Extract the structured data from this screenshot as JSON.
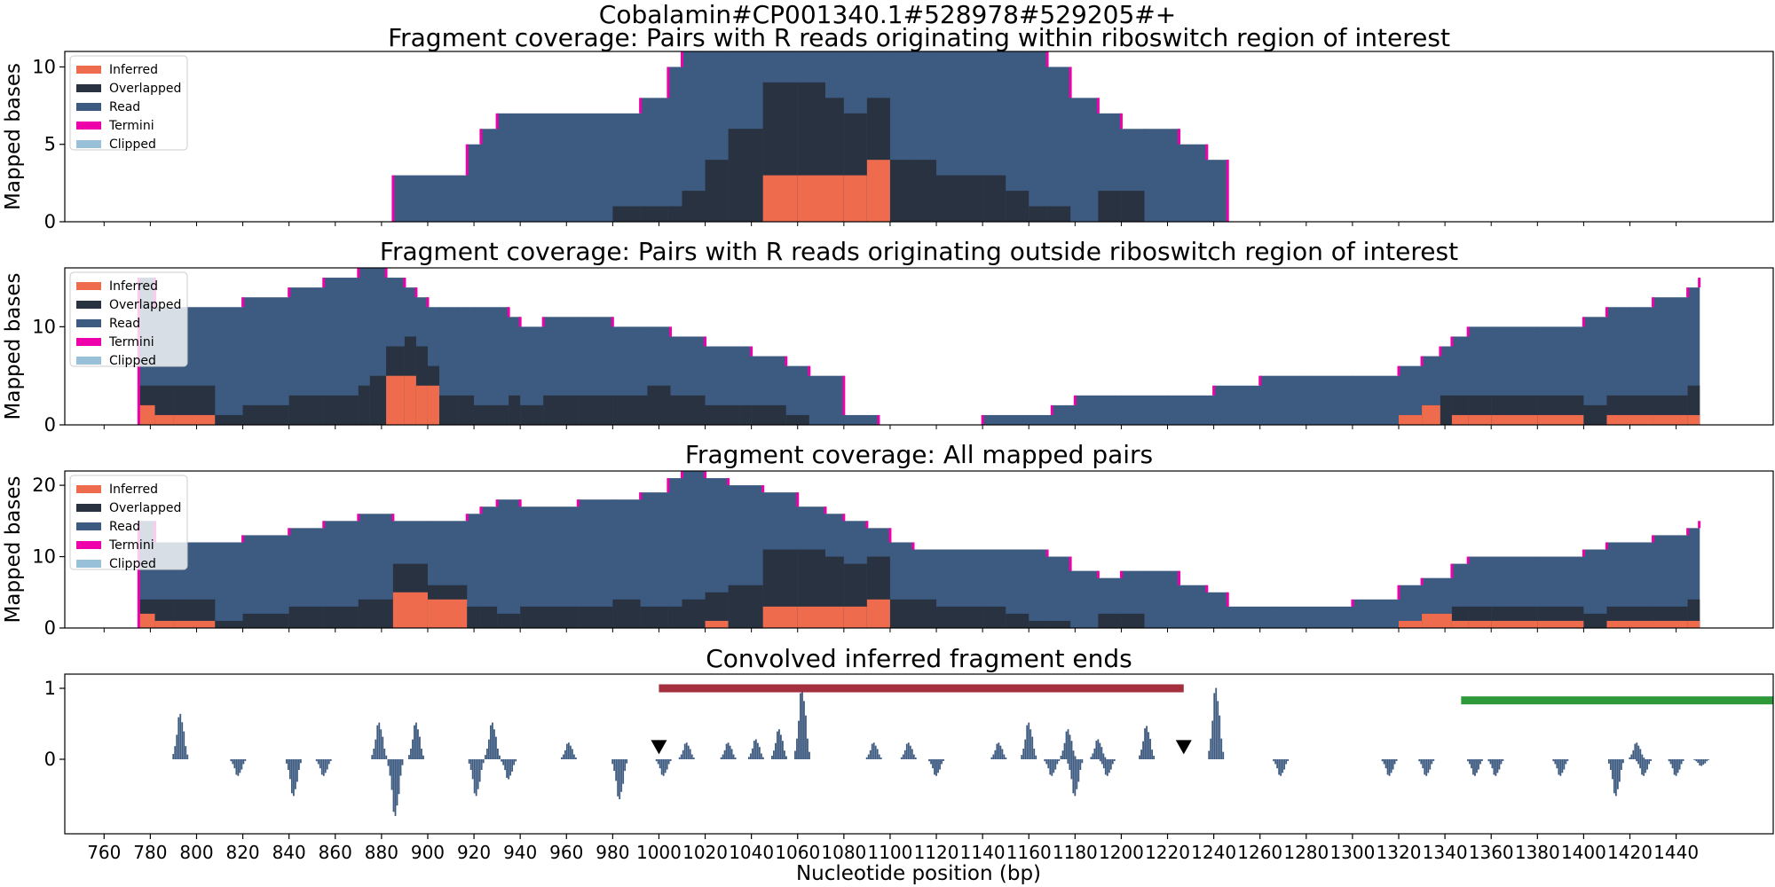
{
  "figure": {
    "suptitle": "Cobalamin#CP001340.1#528978#529205#+",
    "xlabel": "Nucleotide position (bp)"
  },
  "colors": {
    "Inferred": "#ee6c4d",
    "Overlapped": "#293241",
    "Read": "#3d5a80",
    "Termini": "#ee00aa",
    "Clipped": "#98c1d9",
    "ends_bars": "#3d5a80",
    "red_bar": "#a4303f",
    "green_bar": "#2e9939",
    "marker": "#000000"
  },
  "legend": [
    "Inferred",
    "Overlapped",
    "Read",
    "Termini",
    "Clipped"
  ],
  "chart_data": [
    {
      "type": "area",
      "title": "Fragment coverage: Pairs with R reads originating within riboswitch region of interest",
      "ylabel": "Mapped bases",
      "xlim": [
        743,
        1482
      ],
      "ylim": [
        0,
        11
      ],
      "yticks": [
        0,
        5,
        10
      ],
      "legend_position": "upper left",
      "steps": {
        "x": [
          885,
          917,
          923,
          930,
          940,
          965,
          980,
          992,
          1004,
          1010,
          1020,
          1030,
          1045,
          1060,
          1072,
          1080,
          1090,
          1100,
          1110,
          1120,
          1140,
          1150,
          1160,
          1168,
          1178,
          1190,
          1200,
          1210,
          1225,
          1237,
          1246
        ],
        "Read": [
          3,
          5,
          6,
          7,
          7,
          7,
          7,
          8,
          10,
          11,
          11,
          11,
          11,
          11,
          11,
          11,
          11,
          11,
          11,
          11,
          11,
          11,
          11,
          10,
          8,
          7,
          6,
          6,
          5,
          4,
          0
        ],
        "Overlapped": [
          0,
          0,
          0,
          0,
          0,
          0,
          1,
          1,
          1,
          2,
          4,
          6,
          9,
          9,
          8,
          7,
          8,
          4,
          4,
          3,
          3,
          2,
          1,
          1,
          0,
          2,
          2,
          0,
          0,
          0,
          0
        ],
        "Inferred": [
          0,
          0,
          0,
          0,
          0,
          0,
          0,
          0,
          0,
          0,
          0,
          0,
          3,
          3,
          3,
          3,
          4,
          0,
          0,
          0,
          0,
          0,
          0,
          0,
          0,
          0,
          0,
          0,
          0,
          0,
          0
        ]
      }
    },
    {
      "type": "area",
      "title": "Fragment coverage: Pairs with R reads originating outside riboswitch region of interest",
      "ylabel": "Mapped bases",
      "xlim": [
        743,
        1482
      ],
      "ylim": [
        0,
        16
      ],
      "yticks": [
        0,
        10
      ],
      "legend_position": "upper left",
      "steps": {
        "x": [
          775,
          782,
          790,
          800,
          808,
          820,
          840,
          855,
          870,
          875,
          882,
          890,
          895,
          900,
          905,
          913,
          920,
          935,
          940,
          950,
          965,
          980,
          995,
          1005,
          1020,
          1035,
          1040,
          1055,
          1065,
          1080,
          1095,
          1140,
          1170,
          1180,
          1200,
          1220,
          1240,
          1260,
          1280,
          1300,
          1320,
          1330,
          1338,
          1343,
          1350,
          1360,
          1380,
          1400,
          1410,
          1420,
          1430,
          1445,
          1450
        ],
        "Read": [
          15,
          12,
          12,
          12,
          12,
          13,
          14,
          15,
          16,
          16,
          15,
          14,
          13,
          12,
          12,
          12,
          12,
          11,
          10,
          11,
          11,
          10,
          10,
          9,
          8,
          8,
          7,
          6,
          5,
          1,
          0,
          1,
          2,
          3,
          3,
          3,
          4,
          5,
          5,
          5,
          6,
          7,
          8,
          9,
          10,
          10,
          10,
          11,
          12,
          12,
          13,
          14,
          15
        ],
        "Overlapped": [
          4,
          4,
          4,
          4,
          1,
          2,
          3,
          3,
          4,
          5,
          8,
          9,
          8,
          6,
          3,
          3,
          2,
          3,
          2,
          3,
          3,
          3,
          4,
          3,
          2,
          2,
          2,
          1,
          0,
          0,
          0,
          0,
          0,
          0,
          0,
          0,
          0,
          0,
          0,
          0,
          1,
          2,
          3,
          3,
          3,
          3,
          3,
          2,
          3,
          3,
          3,
          4,
          7
        ],
        "Inferred": [
          2,
          1,
          1,
          1,
          0,
          0,
          0,
          0,
          0,
          0,
          5,
          5,
          4,
          4,
          0,
          0,
          0,
          0,
          0,
          0,
          0,
          0,
          0,
          0,
          0,
          0,
          0,
          0,
          0,
          0,
          0,
          0,
          0,
          0,
          0,
          0,
          0,
          0,
          0,
          0,
          1,
          2,
          0,
          1,
          1,
          1,
          1,
          0,
          1,
          1,
          1,
          1,
          0
        ]
      }
    },
    {
      "type": "area",
      "title": "Fragment coverage: All mapped pairs",
      "ylabel": "Mapped bases",
      "xlim": [
        743,
        1482
      ],
      "ylim": [
        0,
        22
      ],
      "yticks": [
        0,
        10,
        20
      ],
      "legend_position": "upper left",
      "steps": {
        "x": [
          775,
          782,
          790,
          800,
          808,
          820,
          840,
          855,
          870,
          885,
          900,
          917,
          923,
          930,
          940,
          965,
          980,
          992,
          1004,
          1010,
          1020,
          1030,
          1045,
          1060,
          1072,
          1080,
          1090,
          1100,
          1110,
          1120,
          1140,
          1150,
          1160,
          1168,
          1178,
          1190,
          1200,
          1210,
          1225,
          1237,
          1246,
          1265,
          1300,
          1320,
          1330,
          1343,
          1350,
          1360,
          1380,
          1400,
          1410,
          1420,
          1430,
          1445,
          1450
        ],
        "Read": [
          15,
          12,
          12,
          12,
          12,
          13,
          14,
          15,
          16,
          15,
          15,
          16,
          17,
          18,
          17,
          18,
          18,
          19,
          21,
          22,
          21,
          20,
          19,
          17,
          16,
          15,
          14,
          12,
          11,
          11,
          11,
          11,
          11,
          10,
          8,
          7,
          8,
          8,
          6,
          5,
          3,
          3,
          4,
          6,
          7,
          9,
          10,
          10,
          10,
          11,
          12,
          12,
          13,
          14,
          15
        ],
        "Overlapped": [
          4,
          4,
          4,
          4,
          1,
          2,
          3,
          3,
          4,
          9,
          6,
          3,
          3,
          2,
          3,
          3,
          4,
          3,
          3,
          4,
          5,
          6,
          11,
          11,
          10,
          9,
          10,
          4,
          4,
          3,
          3,
          2,
          1,
          1,
          0,
          2,
          2,
          0,
          0,
          0,
          0,
          0,
          0,
          1,
          2,
          3,
          3,
          3,
          3,
          2,
          3,
          3,
          3,
          4,
          7
        ],
        "Inferred": [
          2,
          1,
          1,
          1,
          0,
          0,
          0,
          0,
          0,
          5,
          4,
          0,
          0,
          0,
          0,
          0,
          0,
          0,
          0,
          0,
          1,
          0,
          3,
          3,
          3,
          3,
          4,
          0,
          0,
          0,
          0,
          0,
          0,
          0,
          0,
          0,
          0,
          0,
          0,
          0,
          0,
          0,
          0,
          1,
          2,
          1,
          1,
          1,
          1,
          0,
          1,
          1,
          1,
          1,
          0
        ]
      }
    },
    {
      "type": "bar",
      "title": "Convolved inferred fragment ends",
      "xlabel": "Nucleotide position (bp)",
      "xlim": [
        743,
        1482
      ],
      "ylim": [
        -1.05,
        1.2
      ],
      "yticks": [
        0,
        1
      ],
      "xticks": [
        760,
        780,
        800,
        820,
        840,
        860,
        880,
        900,
        920,
        940,
        960,
        980,
        1000,
        1020,
        1040,
        1060,
        1080,
        1100,
        1120,
        1140,
        1160,
        1180,
        1200,
        1220,
        1240,
        1260,
        1280,
        1300,
        1320,
        1340,
        1360,
        1380,
        1400,
        1420,
        1440
      ],
      "peaks": [
        {
          "x": 793,
          "h": 0.68
        },
        {
          "x": 818,
          "h": -0.25
        },
        {
          "x": 842,
          "h": -0.55
        },
        {
          "x": 855,
          "h": -0.25
        },
        {
          "x": 879,
          "h": 0.55
        },
        {
          "x": 886,
          "h": -0.85
        },
        {
          "x": 895,
          "h": 0.55
        },
        {
          "x": 921,
          "h": -0.55
        },
        {
          "x": 928,
          "h": 0.55
        },
        {
          "x": 935,
          "h": -0.3
        },
        {
          "x": 961,
          "h": 0.25
        },
        {
          "x": 983,
          "h": -0.6
        },
        {
          "x": 1002,
          "h": -0.25
        },
        {
          "x": 1012,
          "h": 0.25
        },
        {
          "x": 1030,
          "h": 0.25
        },
        {
          "x": 1042,
          "h": 0.3
        },
        {
          "x": 1052,
          "h": 0.45
        },
        {
          "x": 1062,
          "h": 1.07
        },
        {
          "x": 1093,
          "h": 0.25
        },
        {
          "x": 1108,
          "h": 0.25
        },
        {
          "x": 1120,
          "h": -0.25
        },
        {
          "x": 1147,
          "h": 0.25
        },
        {
          "x": 1160,
          "h": 0.55
        },
        {
          "x": 1170,
          "h": -0.25
        },
        {
          "x": 1177,
          "h": 0.45
        },
        {
          "x": 1180,
          "h": -0.55
        },
        {
          "x": 1190,
          "h": 0.3
        },
        {
          "x": 1194,
          "h": -0.25
        },
        {
          "x": 1211,
          "h": 0.5
        },
        {
          "x": 1241,
          "h": 1.07
        },
        {
          "x": 1269,
          "h": -0.25
        },
        {
          "x": 1316,
          "h": -0.25
        },
        {
          "x": 1332,
          "h": -0.25
        },
        {
          "x": 1353,
          "h": -0.25
        },
        {
          "x": 1362,
          "h": -0.25
        },
        {
          "x": 1390,
          "h": -0.25
        },
        {
          "x": 1414,
          "h": -0.55
        },
        {
          "x": 1423,
          "h": 0.25
        },
        {
          "x": 1426,
          "h": -0.25
        },
        {
          "x": 1440,
          "h": -0.25
        },
        {
          "x": 1451,
          "h": -0.1
        }
      ],
      "red_bar": {
        "x0": 1000,
        "x1": 1227,
        "y": 1.0
      },
      "green_bar": {
        "x0": 1347,
        "x1": 1482,
        "y": 0.83
      },
      "markers": [
        {
          "x": 1000,
          "y": 0.07
        },
        {
          "x": 1227,
          "y": 0.07
        }
      ]
    }
  ]
}
